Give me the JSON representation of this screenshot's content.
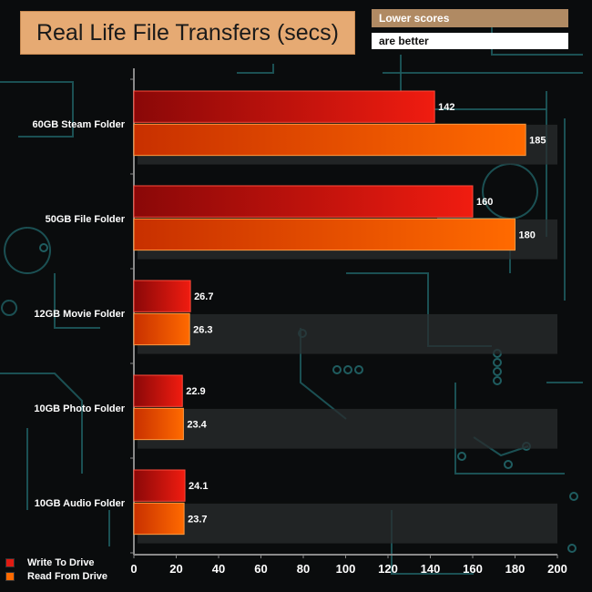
{
  "title": "Real Life File Transfers (secs)",
  "note": {
    "line1": "Lower scores",
    "line2": "are better"
  },
  "colors": {
    "write": "#e01b12",
    "read": "#ff6a00",
    "title_bg": "#e6aa73",
    "circuit": "#1f5d60"
  },
  "chart_data": {
    "type": "bar",
    "orientation": "horizontal",
    "title": "Real Life File Transfers (secs)",
    "xlabel": "",
    "ylabel": "",
    "xlim": [
      0,
      200
    ],
    "xticks": [
      0,
      20,
      40,
      60,
      80,
      100,
      120,
      140,
      160,
      180,
      200
    ],
    "categories": [
      "60GB Steam Folder",
      "50GB File Folder",
      "12GB Movie Folder",
      "10GB Photo Folder",
      "10GB Audio Folder"
    ],
    "series": [
      {
        "name": "Write To  Drive",
        "values": [
          142,
          160,
          26.7,
          22.9,
          24.1
        ]
      },
      {
        "name": "Read From  Drive",
        "values": [
          185,
          180,
          26.3,
          23.4,
          23.7
        ]
      }
    ],
    "value_labels": [
      [
        "142",
        "160",
        "26.7",
        "22.9",
        "24.1"
      ],
      [
        "185",
        "180",
        "26.3",
        "23.4",
        "23.7"
      ]
    ],
    "legend_position": "bottom-left"
  }
}
